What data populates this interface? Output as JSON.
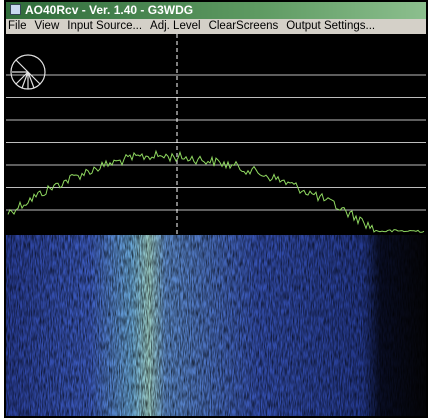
{
  "window": {
    "title": "AO40Rcv - Ver. 1.40 - G3WDG"
  },
  "menu": {
    "items": [
      "File",
      "View",
      "Input Source...",
      "Adj. Level",
      "ClearScreens",
      "Output Settings..."
    ]
  }
}
